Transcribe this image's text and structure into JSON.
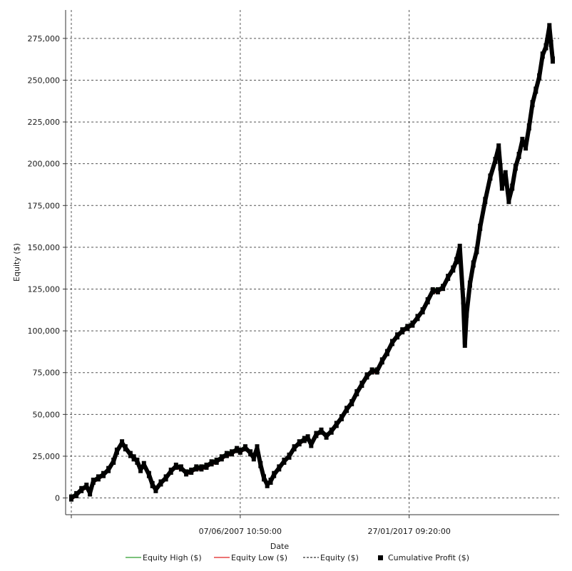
{
  "chart_data": {
    "type": "line",
    "xlabel": "Date",
    "ylabel": "Equity ($)",
    "ylim": [
      -10000,
      292000
    ],
    "y_ticks": [
      0,
      25000,
      50000,
      75000,
      100000,
      125000,
      150000,
      175000,
      200000,
      225000,
      250000,
      275000
    ],
    "y_tick_labels": [
      "0",
      "25,000",
      "50,000",
      "75,000",
      "100,000",
      "125,000",
      "150,000",
      "175,000",
      "200,000",
      "225,000",
      "250,000",
      "275,000"
    ],
    "x_tick_labels": [
      "07/06/2007 10:50:00",
      "27/01/2017 09:20:00"
    ],
    "x_ticks_index": [
      100,
      200
    ],
    "x_index_range": [
      0,
      285
    ],
    "grid": true,
    "legend": {
      "position": "bottom",
      "entries": [
        {
          "label": "Equity High ($)",
          "color": "#2e9e2e",
          "style": "line"
        },
        {
          "label": "Equity Low ($)",
          "color": "#e02020",
          "style": "line"
        },
        {
          "label": "Equity ($)",
          "color": "#333333",
          "style": "dashed"
        },
        {
          "label": "Cumulative Profit ($)",
          "color": "#000000",
          "style": "square"
        }
      ]
    },
    "series": [
      {
        "name": "Cumulative Profit ($)",
        "points": [
          [
            0,
            0
          ],
          [
            3,
            2000
          ],
          [
            6,
            5000
          ],
          [
            9,
            7000
          ],
          [
            11,
            3000
          ],
          [
            13,
            10000
          ],
          [
            16,
            12000
          ],
          [
            19,
            14000
          ],
          [
            22,
            17000
          ],
          [
            25,
            22000
          ],
          [
            27,
            28000
          ],
          [
            30,
            33000
          ],
          [
            32,
            30000
          ],
          [
            35,
            26000
          ],
          [
            37,
            24000
          ],
          [
            39,
            22000
          ],
          [
            41,
            17000
          ],
          [
            43,
            20000
          ],
          [
            46,
            14000
          ],
          [
            48,
            8000
          ],
          [
            50,
            5000
          ],
          [
            53,
            9000
          ],
          [
            56,
            12000
          ],
          [
            59,
            16000
          ],
          [
            62,
            19000
          ],
          [
            65,
            18000
          ],
          [
            68,
            15000
          ],
          [
            71,
            16000
          ],
          [
            74,
            18000
          ],
          [
            77,
            18000
          ],
          [
            80,
            19000
          ],
          [
            83,
            21000
          ],
          [
            86,
            22000
          ],
          [
            89,
            24000
          ],
          [
            92,
            26000
          ],
          [
            95,
            27000
          ],
          [
            98,
            29000
          ],
          [
            100,
            28000
          ],
          [
            103,
            30000
          ],
          [
            106,
            27000
          ],
          [
            108,
            24000
          ],
          [
            110,
            30000
          ],
          [
            112,
            20000
          ],
          [
            114,
            12000
          ],
          [
            116,
            8000
          ],
          [
            118,
            10000
          ],
          [
            120,
            14000
          ],
          [
            123,
            18000
          ],
          [
            126,
            22000
          ],
          [
            129,
            25000
          ],
          [
            132,
            30000
          ],
          [
            135,
            33000
          ],
          [
            138,
            35000
          ],
          [
            140,
            36000
          ],
          [
            142,
            32000
          ],
          [
            145,
            38000
          ],
          [
            148,
            40000
          ],
          [
            151,
            37000
          ],
          [
            154,
            40000
          ],
          [
            157,
            44000
          ],
          [
            160,
            48000
          ],
          [
            163,
            53000
          ],
          [
            166,
            57000
          ],
          [
            169,
            63000
          ],
          [
            172,
            68000
          ],
          [
            175,
            73000
          ],
          [
            178,
            76000
          ],
          [
            181,
            76000
          ],
          [
            184,
            82000
          ],
          [
            187,
            87000
          ],
          [
            190,
            93000
          ],
          [
            193,
            97000
          ],
          [
            196,
            100000
          ],
          [
            199,
            102000
          ],
          [
            202,
            104000
          ],
          [
            205,
            108000
          ],
          [
            208,
            112000
          ],
          [
            211,
            118000
          ],
          [
            214,
            124000
          ],
          [
            217,
            124000
          ],
          [
            220,
            126000
          ],
          [
            223,
            132000
          ],
          [
            226,
            137000
          ],
          [
            228,
            142000
          ],
          [
            230,
            150000
          ],
          [
            232,
            118000
          ],
          [
            233,
            92000
          ],
          [
            234,
            110000
          ],
          [
            236,
            128000
          ],
          [
            238,
            140000
          ],
          [
            240,
            148000
          ],
          [
            242,
            162000
          ],
          [
            245,
            178000
          ],
          [
            248,
            192000
          ],
          [
            251,
            202000
          ],
          [
            253,
            210000
          ],
          [
            254,
            198000
          ],
          [
            255,
            186000
          ],
          [
            257,
            194000
          ],
          [
            259,
            178000
          ],
          [
            261,
            186000
          ],
          [
            263,
            198000
          ],
          [
            265,
            205000
          ],
          [
            267,
            214000
          ],
          [
            269,
            210000
          ],
          [
            271,
            222000
          ],
          [
            273,
            236000
          ],
          [
            275,
            244000
          ],
          [
            277,
            252000
          ],
          [
            279,
            265000
          ],
          [
            281,
            270000
          ],
          [
            283,
            282000
          ],
          [
            284,
            272000
          ],
          [
            285,
            262000
          ]
        ]
      }
    ]
  }
}
